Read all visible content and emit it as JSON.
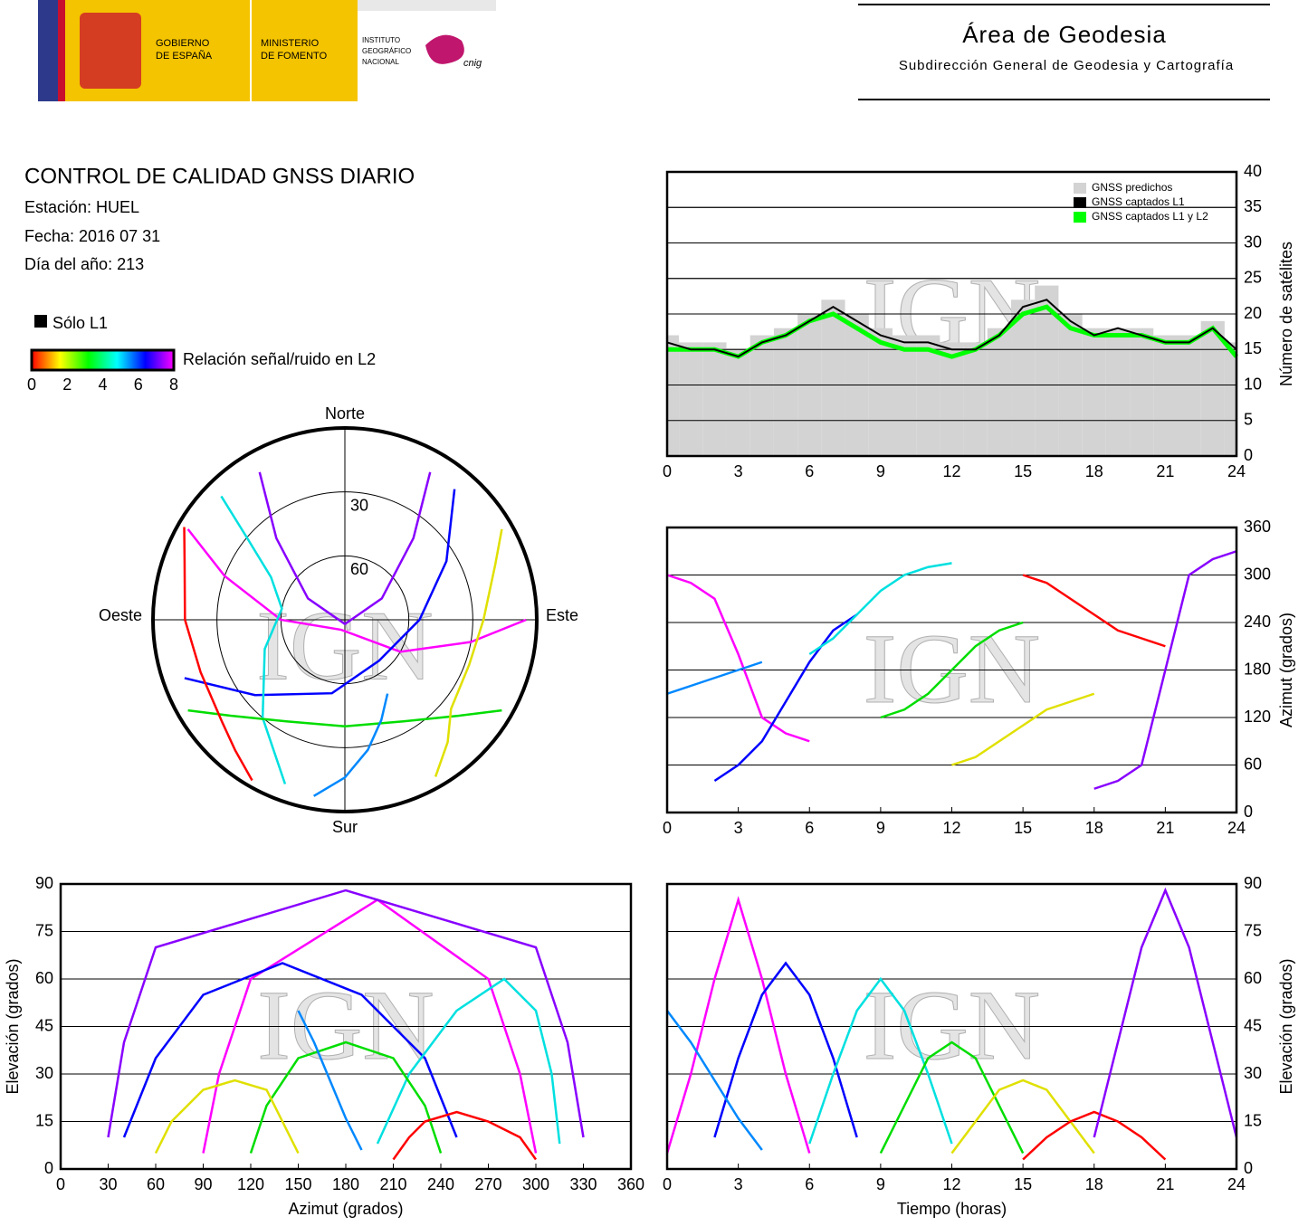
{
  "header": {
    "gobierno": [
      "GOBIERNO",
      "DE ESPAÑA"
    ],
    "ministerio": [
      "MINISTERIO",
      "DE FOMENTO"
    ],
    "instituto": [
      "INSTITUTO",
      "GEOGRÁFICO",
      "NACIONAL"
    ],
    "cnig": "cnig",
    "title": "Área de Geodesia",
    "subtitle": "Subdirección General de Geodesia y Cartografía"
  },
  "report": {
    "title": "CONTROL DE CALIDAD GNSS DIARIO",
    "station": "Estación: HUEL",
    "date": "Fecha: 2016 07 31",
    "doy": "Día del año: 213",
    "l1_only": "Sólo L1",
    "colorbar_label": "Relación señal/ruido en L2",
    "colorbar_lim": [
      0,
      8
    ],
    "colorbar_ticks": [
      0,
      2,
      4,
      6,
      8
    ]
  },
  "chart_data": [
    {
      "type": "satellite-count",
      "x": [
        0,
        1,
        2,
        3,
        4,
        5,
        6,
        7,
        8,
        9,
        10,
        11,
        12,
        13,
        14,
        15,
        16,
        17,
        18,
        19,
        20,
        21,
        22,
        23,
        24
      ],
      "series": [
        {
          "name": "GNSS predichos",
          "color": "#d3d3d3",
          "values": [
            17,
            16,
            16,
            15,
            17,
            18,
            20,
            22,
            20,
            18,
            17,
            17,
            16,
            16,
            18,
            22,
            24,
            20,
            18,
            18,
            18,
            17,
            17,
            19,
            16
          ]
        },
        {
          "name": "GNSS captados L1",
          "color": "#000000",
          "values": [
            16,
            15,
            15,
            14,
            16,
            17,
            19,
            21,
            19,
            17,
            16,
            16,
            15,
            15,
            17,
            21,
            22,
            19,
            17,
            18,
            17,
            16,
            16,
            18,
            15
          ]
        },
        {
          "name": "GNSS captados L1 y L2",
          "color": "#00ff00",
          "values": [
            15,
            15,
            15,
            14,
            16,
            17,
            19,
            20,
            18,
            16,
            15,
            15,
            14,
            15,
            17,
            20,
            21,
            18,
            17,
            17,
            17,
            16,
            16,
            18,
            14
          ]
        }
      ],
      "xlim": [
        0,
        24
      ],
      "xticks": [
        0,
        3,
        6,
        9,
        12,
        15,
        18,
        21,
        24
      ],
      "ylim": [
        0,
        40
      ],
      "yticks": [
        0,
        5,
        10,
        15,
        20,
        25,
        30,
        35,
        40
      ],
      "ylabel": "Número de satélites",
      "yaxis_side": "right",
      "grid": true,
      "legend": "upper right",
      "watermark": "IGN"
    },
    {
      "type": "polar",
      "directions": {
        "north": "Norte",
        "south": "Sur",
        "east": "Este",
        "west": "Oeste"
      },
      "rlim": [
        90,
        0
      ],
      "rticks": [
        30,
        60
      ],
      "watermark": "IGN"
    },
    {
      "type": "line",
      "x": [
        0,
        1,
        2,
        3,
        4,
        5,
        6,
        7,
        8,
        9,
        10,
        11,
        12,
        13,
        14,
        15,
        16,
        17,
        18,
        19,
        20,
        21,
        22,
        23,
        24
      ],
      "series": [
        {
          "color": "#ff00ff",
          "values": [
            300,
            290,
            270,
            200,
            120,
            100,
            90,
            null,
            null,
            null,
            null,
            null,
            null,
            null,
            null,
            null,
            null,
            null,
            null,
            null,
            null,
            null,
            null,
            null,
            null
          ]
        },
        {
          "color": "#0000ff",
          "values": [
            null,
            null,
            40,
            60,
            90,
            140,
            190,
            230,
            250,
            null,
            null,
            null,
            null,
            null,
            null,
            null,
            null,
            null,
            null,
            null,
            null,
            null,
            null,
            null,
            null
          ]
        },
        {
          "color": "#00e0e0",
          "values": [
            null,
            null,
            null,
            null,
            null,
            null,
            200,
            220,
            250,
            280,
            300,
            310,
            315,
            null,
            null,
            null,
            null,
            null,
            null,
            null,
            null,
            null,
            null,
            null,
            null
          ]
        },
        {
          "color": "#00dd00",
          "values": [
            null,
            null,
            null,
            null,
            null,
            null,
            null,
            null,
            null,
            120,
            130,
            150,
            180,
            210,
            230,
            240,
            null,
            null,
            null,
            null,
            null,
            null,
            null,
            null,
            null
          ]
        },
        {
          "color": "#e0e000",
          "values": [
            null,
            null,
            null,
            null,
            null,
            null,
            null,
            null,
            null,
            null,
            null,
            null,
            60,
            70,
            90,
            110,
            130,
            140,
            150,
            null,
            null,
            null,
            null,
            null,
            null
          ]
        },
        {
          "color": "#ff0000",
          "values": [
            null,
            null,
            null,
            null,
            null,
            null,
            null,
            null,
            null,
            null,
            null,
            null,
            null,
            null,
            null,
            300,
            290,
            270,
            250,
            230,
            220,
            210,
            null,
            null,
            null
          ]
        },
        {
          "color": "#8800ff",
          "values": [
            null,
            null,
            null,
            null,
            null,
            null,
            null,
            null,
            null,
            null,
            null,
            null,
            null,
            null,
            null,
            null,
            null,
            null,
            30,
            40,
            60,
            180,
            300,
            320,
            330
          ]
        },
        {
          "color": "#0088ff",
          "values": [
            150,
            160,
            170,
            180,
            190,
            null,
            null,
            null,
            null,
            null,
            null,
            null,
            null,
            null,
            null,
            null,
            null,
            null,
            null,
            null,
            null,
            null,
            null,
            null,
            null
          ]
        }
      ],
      "xlim": [
        0,
        24
      ],
      "xticks": [
        0,
        3,
        6,
        9,
        12,
        15,
        18,
        21,
        24
      ],
      "ylim": [
        0,
        360
      ],
      "yticks": [
        0,
        60,
        120,
        180,
        240,
        300,
        360
      ],
      "ylabel": "Azimut (grados)",
      "yaxis_side": "right",
      "grid": true,
      "watermark": "IGN"
    },
    {
      "type": "elevation-azimuth",
      "xlim": [
        0,
        360
      ],
      "xticks": [
        0,
        30,
        60,
        90,
        120,
        150,
        180,
        210,
        240,
        270,
        300,
        330,
        360
      ],
      "ylim": [
        0,
        90
      ],
      "yticks": [
        0,
        15,
        30,
        45,
        60,
        75,
        90
      ],
      "xlabel": "Azimut (grados)",
      "ylabel": "Elevación (grados)",
      "yaxis_side": "left",
      "grid": true,
      "watermark": "IGN"
    },
    {
      "type": "line",
      "x": [
        0,
        1,
        2,
        3,
        4,
        5,
        6,
        7,
        8,
        9,
        10,
        11,
        12,
        13,
        14,
        15,
        16,
        17,
        18,
        19,
        20,
        21,
        22,
        23,
        24
      ],
      "series": [
        {
          "color": "#ff00ff",
          "values": [
            5,
            30,
            60,
            85,
            60,
            30,
            5,
            null,
            null,
            null,
            null,
            null,
            null,
            null,
            null,
            null,
            null,
            null,
            null,
            null,
            null,
            null,
            null,
            null,
            null
          ]
        },
        {
          "color": "#0000ff",
          "values": [
            null,
            null,
            10,
            35,
            55,
            65,
            55,
            35,
            10,
            null,
            null,
            null,
            null,
            null,
            null,
            null,
            null,
            null,
            null,
            null,
            null,
            null,
            null,
            null,
            null
          ]
        },
        {
          "color": "#00e0e0",
          "values": [
            null,
            null,
            null,
            null,
            null,
            null,
            8,
            30,
            50,
            60,
            50,
            30,
            8,
            null,
            null,
            null,
            null,
            null,
            null,
            null,
            null,
            null,
            null,
            null,
            null
          ]
        },
        {
          "color": "#00dd00",
          "values": [
            null,
            null,
            null,
            null,
            null,
            null,
            null,
            null,
            null,
            5,
            20,
            35,
            40,
            35,
            20,
            5,
            null,
            null,
            null,
            null,
            null,
            null,
            null,
            null,
            null
          ]
        },
        {
          "color": "#e0e000",
          "values": [
            null,
            null,
            null,
            null,
            null,
            null,
            null,
            null,
            null,
            null,
            null,
            null,
            5,
            15,
            25,
            28,
            25,
            15,
            5,
            null,
            null,
            null,
            null,
            null,
            null
          ]
        },
        {
          "color": "#ff0000",
          "values": [
            null,
            null,
            null,
            null,
            null,
            null,
            null,
            null,
            null,
            null,
            null,
            null,
            null,
            null,
            null,
            3,
            10,
            15,
            18,
            15,
            10,
            3,
            null,
            null,
            null
          ]
        },
        {
          "color": "#8800ff",
          "values": [
            null,
            null,
            null,
            null,
            null,
            null,
            null,
            null,
            null,
            null,
            null,
            null,
            null,
            null,
            null,
            null,
            null,
            null,
            10,
            40,
            70,
            88,
            70,
            40,
            10
          ]
        },
        {
          "color": "#0088ff",
          "values": [
            50,
            40,
            28,
            16,
            6,
            null,
            null,
            null,
            null,
            null,
            null,
            null,
            null,
            null,
            null,
            null,
            null,
            null,
            null,
            null,
            null,
            null,
            null,
            null,
            null
          ]
        }
      ],
      "xlim": [
        0,
        24
      ],
      "xticks": [
        0,
        3,
        6,
        9,
        12,
        15,
        18,
        21,
        24
      ],
      "ylim": [
        0,
        90
      ],
      "yticks": [
        0,
        15,
        30,
        45,
        60,
        75,
        90
      ],
      "xlabel": "Tiempo (horas)",
      "ylabel": "Elevación (grados)",
      "yaxis_side": "right",
      "grid": true,
      "watermark": "IGN"
    }
  ]
}
